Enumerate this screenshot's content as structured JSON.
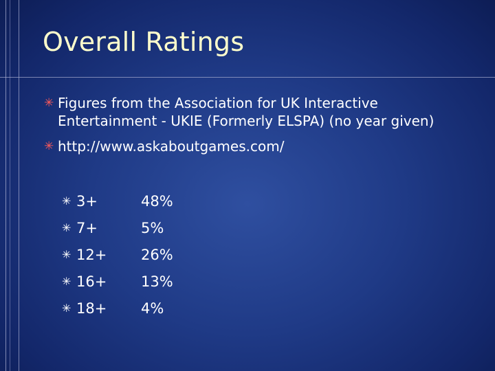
{
  "slide": {
    "title": "Overall Ratings",
    "bullets": [
      "Figures from the Association for UK Interactive Entertainment - UKIE (Formerly ELSPA) (no year given)",
      "http://www.askaboutgames.com/"
    ],
    "bullet_icon": "asterisk-icon",
    "colors": {
      "title": "#ffffcc",
      "bullet_marker": "#ff5a5a",
      "background": "#1f3a86"
    },
    "ratings": [
      {
        "age": "3+",
        "percent": "48%"
      },
      {
        "age": "7+",
        "percent": "5%"
      },
      {
        "age": "12+",
        "percent": "26%"
      },
      {
        "age": "16+",
        "percent": "13%"
      },
      {
        "age": "18+",
        "percent": "4%"
      }
    ]
  }
}
